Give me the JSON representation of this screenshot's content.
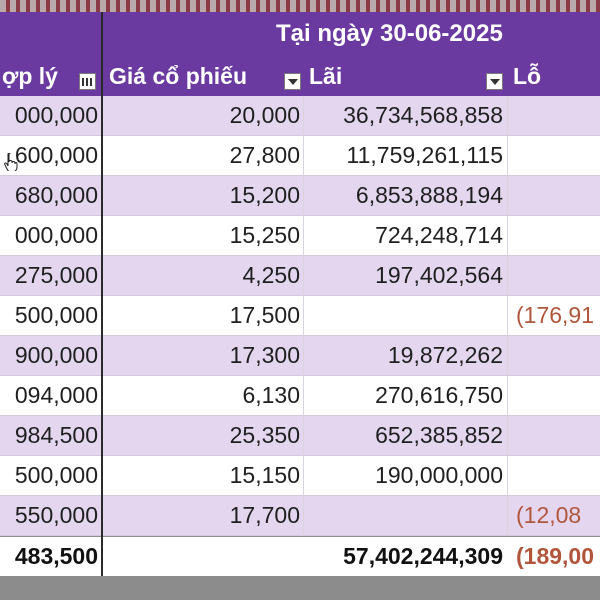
{
  "sheet": {
    "section_title": "Tại ngày 30-06-2025",
    "headers": {
      "col0": "ợp lý",
      "col1": "Giá cổ phiếu",
      "col2": "Lãi",
      "col3": "Lỗ"
    },
    "rows": [
      {
        "c0": "000,000",
        "c1": "20,000",
        "c2": "36,734,568,858",
        "c3": ""
      },
      {
        "c0": "600,000",
        "c1": "27,800",
        "c2": "11,759,261,115",
        "c3": ""
      },
      {
        "c0": "680,000",
        "c1": "15,200",
        "c2": "6,853,888,194",
        "c3": ""
      },
      {
        "c0": "000,000",
        "c1": "15,250",
        "c2": "724,248,714",
        "c3": ""
      },
      {
        "c0": "275,000",
        "c1": "4,250",
        "c2": "197,402,564",
        "c3": ""
      },
      {
        "c0": "500,000",
        "c1": "17,500",
        "c2": "",
        "c3": "(176,91"
      },
      {
        "c0": "900,000",
        "c1": "17,300",
        "c2": "19,872,262",
        "c3": ""
      },
      {
        "c0": "094,000",
        "c1": "6,130",
        "c2": "270,616,750",
        "c3": ""
      },
      {
        "c0": "984,500",
        "c1": "25,350",
        "c2": "652,385,852",
        "c3": ""
      },
      {
        "c0": "500,000",
        "c1": "15,150",
        "c2": "190,000,000",
        "c3": ""
      },
      {
        "c0": "550,000",
        "c1": "17,700",
        "c2": "",
        "c3": "(12,08"
      }
    ],
    "total": {
      "c0": "483,500",
      "c1": "",
      "c2": "57,402,244,309",
      "c3": "(189,00"
    }
  },
  "colors": {
    "header_bg": "#6a3aa0",
    "band_bg": "#e4d6ef",
    "loss_text": "#b1563b"
  }
}
